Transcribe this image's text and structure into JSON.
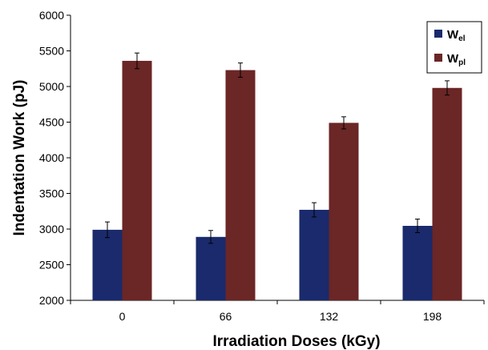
{
  "chart_data": {
    "type": "bar",
    "title": "",
    "xlabel": "Irradiation Doses (kGy)",
    "ylabel": "Indentation Work (pJ)",
    "categories": [
      "0",
      "66",
      "132",
      "198"
    ],
    "ylim": [
      2000,
      6000
    ],
    "yticks": [
      2000,
      2500,
      3000,
      3500,
      4000,
      4500,
      5000,
      5500,
      6000
    ],
    "grid": false,
    "legend_position": "top-right",
    "series": [
      {
        "name": "W",
        "name_sub": "el",
        "color": "#1a2a6c",
        "values": [
          2990,
          2890,
          3270,
          3045
        ],
        "errors": [
          110,
          90,
          100,
          95
        ]
      },
      {
        "name": "W",
        "name_sub": "pl",
        "color": "#6b2626",
        "values": [
          5360,
          5230,
          4490,
          4980
        ],
        "errors": [
          110,
          100,
          85,
          100
        ]
      }
    ]
  }
}
